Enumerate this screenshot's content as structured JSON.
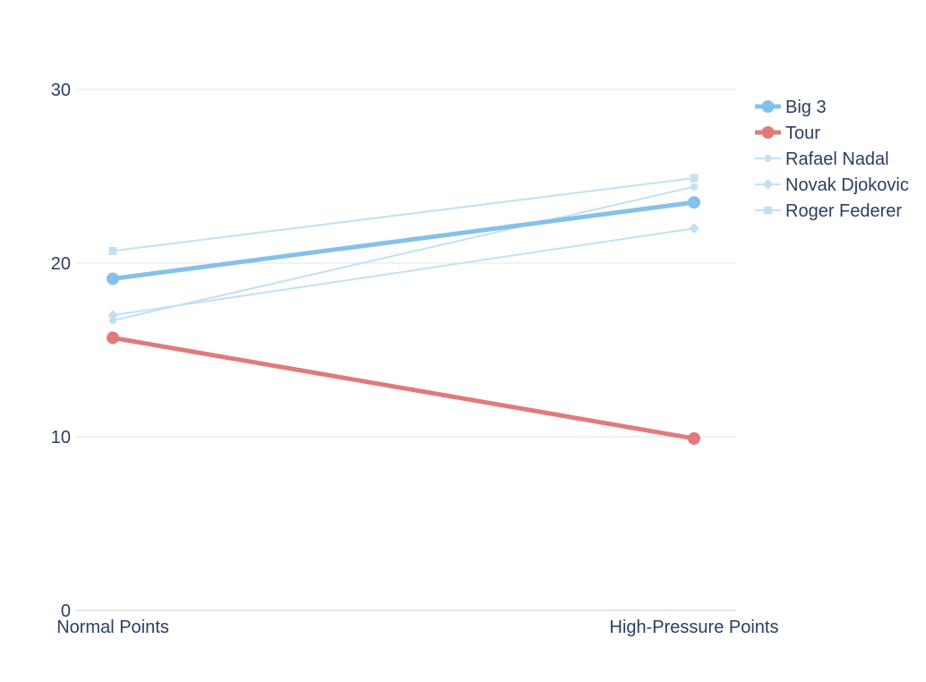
{
  "chart_data": {
    "type": "line",
    "categories": [
      "Normal Points",
      "High-Pressure Points"
    ],
    "ylim": [
      0,
      30
    ],
    "yticks": [
      0,
      10,
      20,
      30
    ],
    "grid": true,
    "legend_placement": "top-right",
    "series": [
      {
        "name": "Big 3",
        "values": [
          19.1,
          23.5
        ],
        "color": "#85c1e9",
        "marker": "circle",
        "emphasis": "bold"
      },
      {
        "name": "Tour",
        "values": [
          15.7,
          9.9
        ],
        "color": "#e07b7b",
        "marker": "circle",
        "emphasis": "bold"
      },
      {
        "name": "Rafael Nadal",
        "values": [
          16.7,
          24.4
        ],
        "color": "#c3e0f3",
        "marker": "hexagon",
        "emphasis": "faint"
      },
      {
        "name": "Novak Djokovic",
        "values": [
          17.0,
          22.0
        ],
        "color": "#c3e0f3",
        "marker": "diamond",
        "emphasis": "faint"
      },
      {
        "name": "Roger Federer",
        "values": [
          20.7,
          24.9
        ],
        "color": "#c3e0f3",
        "marker": "square",
        "emphasis": "faint"
      }
    ]
  }
}
